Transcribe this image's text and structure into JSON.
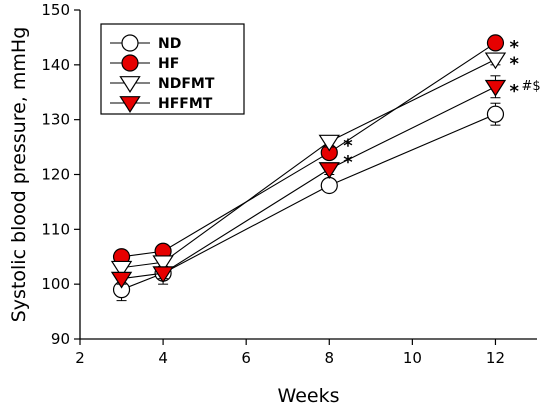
{
  "chart_data": {
    "type": "line",
    "xlabel": "Weeks",
    "ylabel": "Systolic blood pressure, mmHg",
    "xlim": [
      2,
      13
    ],
    "ylim": [
      90,
      150
    ],
    "xticks": [
      2,
      4,
      6,
      8,
      10,
      12
    ],
    "yticks": [
      90,
      100,
      110,
      120,
      130,
      140,
      150
    ],
    "x": [
      3,
      4,
      8,
      12
    ],
    "series": [
      {
        "name": "ND",
        "marker": "circle",
        "fill": "#ffffff",
        "values": [
          99,
          102,
          118,
          131
        ],
        "errors": [
          2,
          2,
          1,
          2
        ]
      },
      {
        "name": "HF",
        "marker": "circle",
        "fill": "#e60000",
        "values": [
          105,
          106,
          124,
          144
        ],
        "errors": [
          1,
          1,
          1,
          1
        ]
      },
      {
        "name": "NDFMT",
        "marker": "triangle-down",
        "fill": "#ffffff",
        "values": [
          103,
          104,
          126,
          141
        ],
        "errors": [
          1,
          1,
          1,
          1
        ]
      },
      {
        "name": "HFFMT",
        "marker": "triangle-down",
        "fill": "#e60000",
        "values": [
          101,
          102,
          121,
          136
        ],
        "errors": [
          1,
          1,
          1,
          2
        ]
      }
    ],
    "annotations": [
      {
        "text": "*",
        "x": 12,
        "y": 144,
        "size": "big"
      },
      {
        "text": "*",
        "x": 12,
        "y": 141,
        "size": "big"
      },
      {
        "text": "*",
        "x": 12,
        "y": 136,
        "size": "big"
      },
      {
        "text": "#$",
        "x": 12,
        "y": 136,
        "size": "small"
      },
      {
        "text": "*",
        "x": 8,
        "y": 126,
        "size": "big"
      },
      {
        "text": "*",
        "x": 8,
        "y": 123,
        "size": "big"
      }
    ],
    "legend_position": "top-left",
    "grid": false
  }
}
